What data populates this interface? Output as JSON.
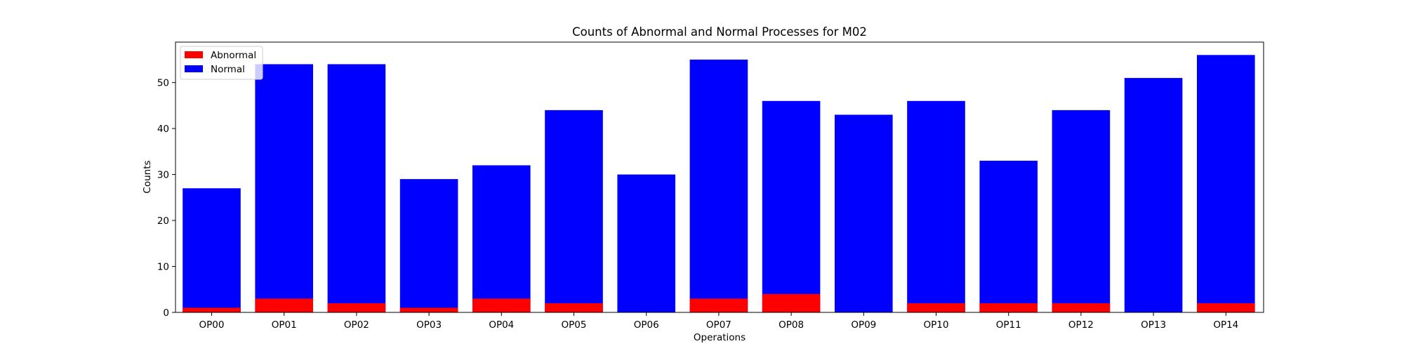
{
  "chart_data": {
    "type": "bar",
    "stacked": "overlay",
    "title": "Counts of Abnormal and Normal Processes for M02",
    "xlabel": "Operations",
    "ylabel": "Counts",
    "categories": [
      "OP00",
      "OP01",
      "OP02",
      "OP03",
      "OP04",
      "OP05",
      "OP06",
      "OP07",
      "OP08",
      "OP09",
      "OP10",
      "OP11",
      "OP12",
      "OP13",
      "OP14"
    ],
    "series": [
      {
        "name": "Normal",
        "color": "#0000ff",
        "values": [
          27,
          54,
          54,
          29,
          32,
          44,
          30,
          55,
          46,
          43,
          46,
          33,
          44,
          51,
          56
        ]
      },
      {
        "name": "Abnormal",
        "color": "#ff0000",
        "values": [
          1,
          3,
          2,
          1,
          3,
          2,
          0,
          3,
          4,
          0,
          2,
          2,
          2,
          0,
          2
        ]
      }
    ],
    "ylim": [
      0,
      58.8
    ],
    "yticks": [
      "0",
      "10",
      "20",
      "30",
      "40",
      "50"
    ],
    "grid": false,
    "legend": {
      "placement": "top-left",
      "entries": [
        {
          "name": "Abnormal",
          "color": "#ff0000"
        },
        {
          "name": "Normal",
          "color": "#0000ff"
        }
      ]
    }
  }
}
